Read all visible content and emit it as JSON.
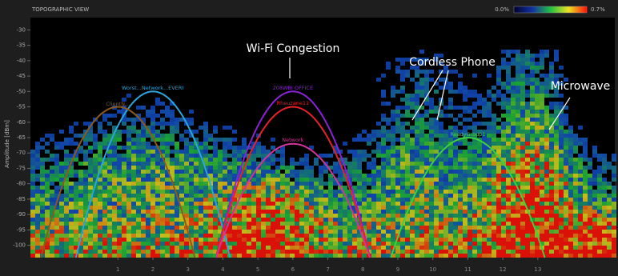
{
  "chart_data": {
    "type": "spectrum",
    "title": "TOPOGRAPHIC VIEW",
    "colorbar_labels": [
      "0.0%",
      "0.7%"
    ],
    "ylabel": "Amplitude [dBm]",
    "ylim": [
      -104,
      -26
    ],
    "yticks": [
      -30,
      -35,
      -40,
      -45,
      -50,
      -55,
      -60,
      -65,
      -70,
      -75,
      -80,
      -85,
      -90,
      -95,
      -100
    ],
    "xlim": [
      -1.5,
      15.2
    ],
    "xticks": [
      1,
      2,
      3,
      4,
      5,
      6,
      7,
      8,
      9,
      10,
      11,
      12,
      13
    ],
    "grid": false,
    "series": [
      {
        "name": "Worst...Network...EVER!",
        "color": "#2aa6dc",
        "channel": 2,
        "peak": -50
      },
      {
        "name": "ClientN...",
        "color": "#8b5a1c",
        "channel": 1,
        "peak": -55
      },
      {
        "name": "208WBI OFFICE",
        "color": "#8c22d6",
        "channel": 6,
        "peak": -50
      },
      {
        "name": "Rheuzane11",
        "color": "#e8202a",
        "channel": 6,
        "peak": -55
      },
      {
        "name": "Network",
        "color": "#d2349c",
        "channel": 6,
        "peak": -67
      },
      {
        "name": "ReadyGroup1",
        "color": "#3fcf3f",
        "channel": 11,
        "peak": -65
      }
    ],
    "annotations": [
      "Wi-Fi Congestion",
      "Cordless Phone",
      "Microwave"
    ]
  }
}
